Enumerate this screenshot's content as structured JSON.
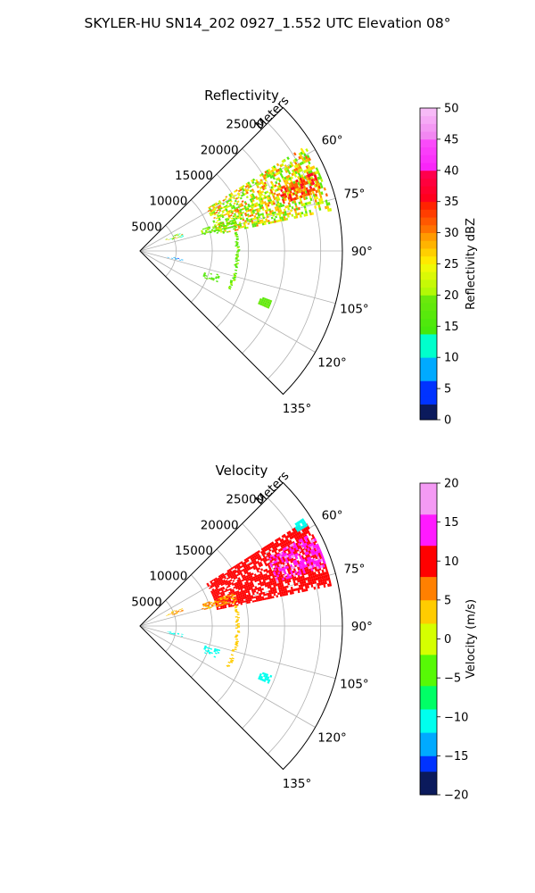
{
  "figure": {
    "suptitle": "SKYLER-HU  SN14_202  0927_1.552 UTC Elevation 08°"
  },
  "chart_data": [
    {
      "type": "heatmap",
      "projection": "polar-sector",
      "title": "Reflectivity",
      "radial_axis_label": "Meters",
      "r_ticks": [
        5000,
        10000,
        15000,
        20000,
        25000
      ],
      "r_tick_labels": [
        "5000",
        "10000",
        "15000",
        "20000",
        "25000"
      ],
      "r_range": [
        0,
        28000
      ],
      "theta_range_deg": [
        45,
        135
      ],
      "theta_ticks_deg": [
        60,
        75,
        90,
        105,
        120,
        135
      ],
      "theta_tick_labels": [
        "60°",
        "75°",
        "90°",
        "105°",
        "120°",
        "135°"
      ],
      "grid": true,
      "colorbar": {
        "label": "Reflectivity dBZ",
        "range": [
          0,
          50
        ],
        "ticks": [
          0,
          5,
          10,
          15,
          20,
          25,
          30,
          35,
          40,
          45,
          50
        ],
        "tick_labels": [
          "0",
          "5",
          "10",
          "15",
          "20",
          "25",
          "30",
          "35",
          "40",
          "45",
          "50"
        ],
        "steps": 40
      },
      "echo_regions": [
        {
          "theta": [
            58,
            78
          ],
          "r": [
            11000,
            27000
          ],
          "value_range": [
            15,
            32
          ],
          "density": 0.55
        },
        {
          "theta": [
            66,
            72
          ],
          "r": [
            21000,
            26500
          ],
          "value_range": [
            28,
            38
          ],
          "density": 0.6
        },
        {
          "theta": [
            71,
            76
          ],
          "r": [
            9000,
            14000
          ],
          "value_range": [
            15,
            22
          ],
          "density": 0.5
        },
        {
          "theta": [
            66,
            72
          ],
          "r": [
            4000,
            6500
          ],
          "value_range": [
            10,
            30
          ],
          "density": 0.35
        },
        {
          "theta": [
            107,
            113
          ],
          "r": [
            9500,
            11500
          ],
          "value_range": [
            14,
            20
          ],
          "density": 0.4
        },
        {
          "theta": [
            111,
            114
          ],
          "r": [
            18000,
            19500
          ],
          "value_range": [
            16,
            20
          ],
          "density": 0.8
        },
        {
          "theta": [
            101,
            104
          ],
          "r": [
            4000,
            6000
          ],
          "value_range": [
            5,
            10
          ],
          "density": 0.35
        }
      ],
      "ring_echo": {
        "r": 13500,
        "theta": [
          72,
          115
        ],
        "value_range": [
          14,
          22
        ]
      }
    },
    {
      "type": "heatmap",
      "projection": "polar-sector",
      "title": "Velocity",
      "radial_axis_label": "Meters",
      "r_ticks": [
        5000,
        10000,
        15000,
        20000,
        25000
      ],
      "r_tick_labels": [
        "5000",
        "10000",
        "15000",
        "20000",
        "25000"
      ],
      "r_range": [
        0,
        28000
      ],
      "theta_range_deg": [
        45,
        135
      ],
      "theta_ticks_deg": [
        60,
        75,
        90,
        105,
        120,
        135
      ],
      "theta_tick_labels": [
        "60°",
        "75°",
        "90°",
        "105°",
        "120°",
        "135°"
      ],
      "grid": true,
      "colorbar": {
        "label": "Velocity (m/s)",
        "range": [
          -20,
          20
        ],
        "ticks": [
          -20,
          -15,
          -10,
          -5,
          0,
          5,
          10,
          15,
          20
        ],
        "tick_labels": [
          "−20",
          "−15",
          "−10",
          "−5",
          "0",
          "5",
          "10",
          "15",
          "20"
        ],
        "steps": 40
      },
      "echo_regions": [
        {
          "theta": [
            58,
            78
          ],
          "r": [
            11000,
            27000
          ],
          "value_range": [
            8,
            12
          ],
          "density": 0.75
        },
        {
          "theta": [
            62,
            72
          ],
          "r": [
            20000,
            27000
          ],
          "value_range": [
            13,
            17
          ],
          "density": 0.6
        },
        {
          "theta": [
            71,
            76
          ],
          "r": [
            9000,
            14000
          ],
          "value_range": [
            4,
            7
          ],
          "density": 0.5
        },
        {
          "theta": [
            66,
            72
          ],
          "r": [
            4000,
            6500
          ],
          "value_range": [
            3,
            6
          ],
          "density": 0.35
        },
        {
          "theta": [
            57,
            59
          ],
          "r": [
            25500,
            27000
          ],
          "value_range": [
            -12,
            -10
          ],
          "density": 0.8
        },
        {
          "theta": [
            107,
            113
          ],
          "r": [
            9500,
            11500
          ],
          "value_range": [
            -11,
            -9
          ],
          "density": 0.4
        },
        {
          "theta": [
            111,
            114
          ],
          "r": [
            18000,
            19500
          ],
          "value_range": [
            -12,
            -10
          ],
          "density": 0.8
        },
        {
          "theta": [
            101,
            104
          ],
          "r": [
            4000,
            6000
          ],
          "value_range": [
            -12,
            -10
          ],
          "density": 0.35
        }
      ],
      "ring_echo": {
        "r": 13500,
        "theta": [
          72,
          115
        ],
        "value_range": [
          3,
          5
        ]
      }
    }
  ]
}
